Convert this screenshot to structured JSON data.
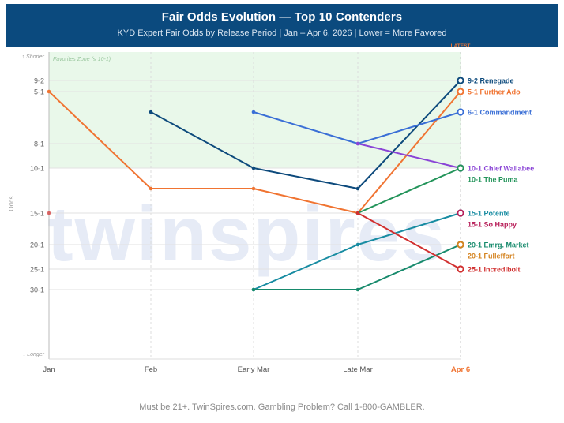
{
  "header": {
    "title": "Fair Odds Evolution — Top 10 Contenders",
    "subtitle": "KYD Expert Fair Odds by Release Period | Jan – Apr 6, 2026 | Lower = More Favored"
  },
  "footer": {
    "text": "Must be 21+. TwinSpires.com. Gambling Problem? Call 1-800-GAMBLER."
  },
  "watermark": "twinspires",
  "chart_data": {
    "type": "line",
    "title": "Fair Odds Evolution — Top 10 Contenders",
    "subtitle": "KYD Expert Fair Odds by Release Period | Jan – Apr 6, 2026 | Lower = More Favored",
    "ylabel": "Odds",
    "y_axis_top_label": "↑ Shorter",
    "y_axis_bottom_label": "↓ Longer",
    "y_reversed": true,
    "categories": [
      "Jan",
      "Feb",
      "Early Mar",
      "Late Mar",
      "Apr 6"
    ],
    "x_highlight": "Apr 6",
    "latest_label": "LATEST",
    "y_ticks": [
      "9-2",
      "5-1",
      "8-1",
      "10-1",
      "15-1",
      "20-1",
      "25-1",
      "30-1"
    ],
    "favorites_zone_label": "Favorites Zone (≤ 10-1)",
    "favorites_zone_limit": "10-1",
    "grid": true,
    "legend": "end-of-line labels",
    "series": [
      {
        "name": "Renegade",
        "color": "#0d4a7c",
        "values": [
          null,
          "6-1",
          "10-1",
          "12-1",
          "9-2"
        ],
        "end_label": "9-2 Renegade"
      },
      {
        "name": "Further Ado",
        "color": "#f07432",
        "values": [
          "5-1",
          "12-1",
          "12-1",
          "15-1",
          "5-1"
        ],
        "end_label": "5-1 Further Ado"
      },
      {
        "name": "Commandment",
        "color": "#3a6fd6",
        "values": [
          null,
          null,
          "6-1",
          "8-1",
          "6-1"
        ],
        "end_label": "6-1 Commandment"
      },
      {
        "name": "Chief Wallabee",
        "color": "#8a44d6",
        "values": [
          null,
          null,
          null,
          "8-1",
          "10-1"
        ],
        "end_label": "10-1 Chief Wallabee"
      },
      {
        "name": "The Puma",
        "color": "#23945a",
        "values": [
          null,
          null,
          null,
          "15-1",
          "10-1"
        ],
        "end_label": "10-1 The Puma"
      },
      {
        "name": "Potente",
        "color": "#188ca2",
        "values": [
          null,
          null,
          "30-1",
          "20-1",
          "15-1"
        ],
        "end_label": "15-1 Potente"
      },
      {
        "name": "So Happy",
        "color": "#b8205a",
        "values": [
          null,
          null,
          null,
          null,
          "15-1"
        ],
        "end_label": "15-1 So Happy"
      },
      {
        "name": "Emrg. Market",
        "color": "#178a6c",
        "values": [
          null,
          null,
          "30-1",
          "30-1",
          "20-1"
        ],
        "end_label": "20-1 Emrg. Market"
      },
      {
        "name": "Fulleffort",
        "color": "#d4821e",
        "values": [
          null,
          null,
          null,
          null,
          "20-1"
        ],
        "end_label": "20-1 Fulleffort"
      },
      {
        "name": "Incredibolt",
        "color": "#d12f2f",
        "values": [
          "15-1",
          null,
          null,
          "15-1",
          "25-1"
        ],
        "end_label": "25-1 Incredibolt"
      }
    ],
    "colors": {
      "header_bg": "#0b4a7e",
      "zone_fill": "#e9f8ea",
      "latest": "#f07432"
    }
  }
}
